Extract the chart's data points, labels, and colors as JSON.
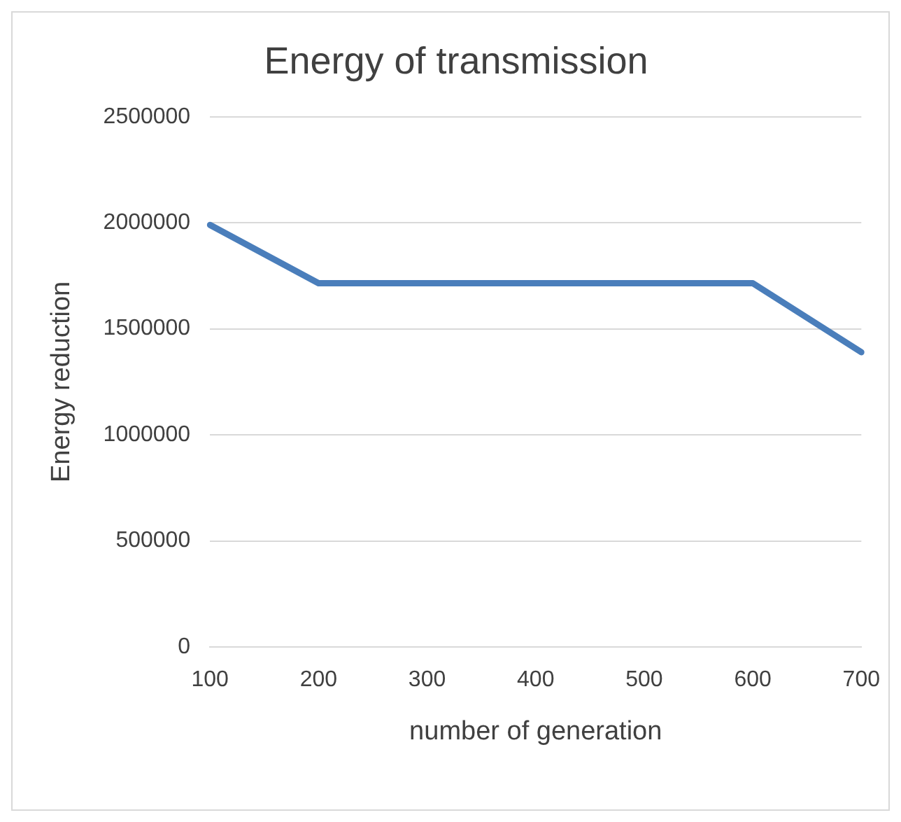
{
  "chart_data": {
    "type": "line",
    "title": "Energy of transmission",
    "xlabel": "number of generation",
    "ylabel": "Energy reduction",
    "categories": [
      "100",
      "200",
      "300",
      "400",
      "500",
      "600",
      "700"
    ],
    "series": [
      {
        "color": "#4a7ebb",
        "values": [
          1990000,
          1715000,
          1715000,
          1715000,
          1715000,
          1715000,
          1390000
        ]
      }
    ],
    "ylim": [
      0,
      2500000
    ],
    "yticks": [
      0,
      500000,
      1000000,
      1500000,
      2000000,
      2500000
    ],
    "grid": "y",
    "legend": false,
    "marker": "none",
    "line_style": "solid"
  }
}
